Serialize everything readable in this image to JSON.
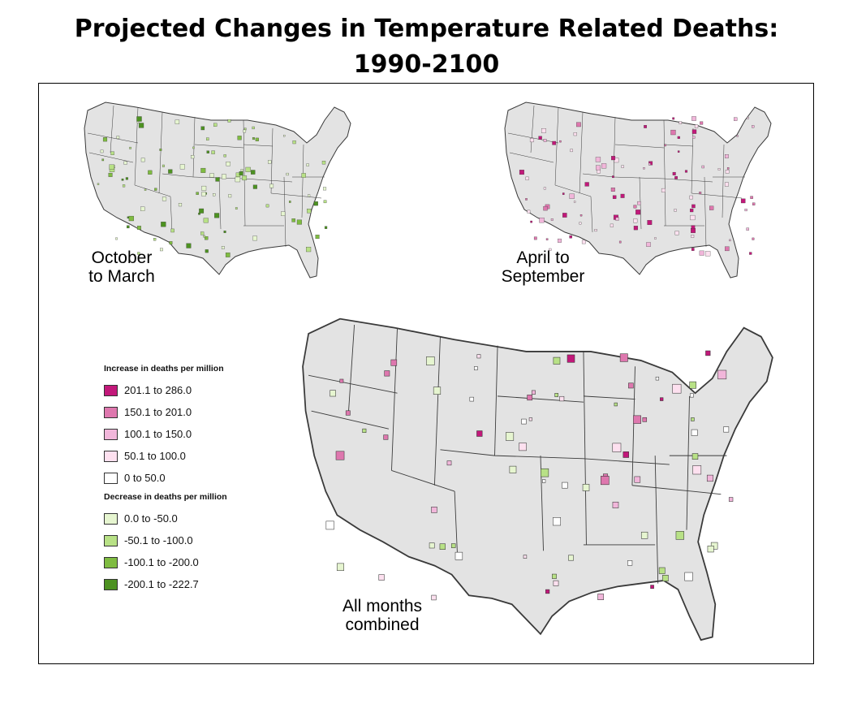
{
  "title": {
    "line1": "Projected Changes in Temperature Related Deaths:",
    "line2": "1990-2100"
  },
  "maps": {
    "winter": {
      "label_line1": "October",
      "label_line2": "to March"
    },
    "summer": {
      "label_line1": "April to",
      "label_line2": "September"
    },
    "all": {
      "label_line1": "All months",
      "label_line2": "combined"
    }
  },
  "legend": {
    "increase_heading": "Increase in deaths per million",
    "increase_items": [
      {
        "label": "201.1 to 286.0",
        "color": "#c2187a"
      },
      {
        "label": "150.1 to 201.0",
        "color": "#de77ae"
      },
      {
        "label": "100.1 to 150.0",
        "color": "#f1b6da"
      },
      {
        "label": "50.1 to 100.0",
        "color": "#fde0ef"
      },
      {
        "label": "0 to 50.0",
        "color": "#ffffff"
      }
    ],
    "decrease_heading": "Decrease in deaths per million",
    "decrease_items": [
      {
        "label": "0.0 to -50.0",
        "color": "#e6f5d0"
      },
      {
        "label": "-50.1 to -100.0",
        "color": "#b8e186"
      },
      {
        "label": "-100.1 to -200.0",
        "color": "#7fbc41"
      },
      {
        "label": "-200.1 to -222.7",
        "color": "#4d9221"
      }
    ]
  },
  "colors": {
    "land": "#e3e3e3",
    "border": "#3a3a3a"
  }
}
